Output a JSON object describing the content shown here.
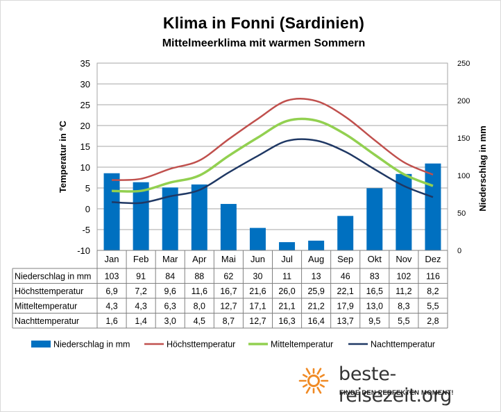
{
  "header": {
    "title": "Klima in Fonni (Sardinien)",
    "subtitle": "Mittelmeerklima mit warmen Sommern"
  },
  "branding": {
    "site": "beste-reisezeit.org",
    "tagline": "FINDE DEN PERFEKTEN MOMENT!",
    "logo_color": "#f08a24"
  },
  "chart_data": {
    "type": "bar",
    "categories": [
      "Jan",
      "Feb",
      "Mar",
      "Apr",
      "Mai",
      "Jun",
      "Jul",
      "Aug",
      "Sep",
      "Okt",
      "Nov",
      "Dez"
    ],
    "y_left": {
      "label": "Temperatur in °C",
      "range": [
        -10,
        35
      ],
      "ticks": [
        -10,
        -5,
        0,
        5,
        10,
        15,
        20,
        25,
        30,
        35
      ]
    },
    "y_right": {
      "label": "Niederschlag in mm",
      "range": [
        0,
        250
      ],
      "ticks": [
        0,
        50,
        100,
        150,
        200,
        250
      ]
    },
    "grid": "horizontal",
    "legend_position": "bottom",
    "series": [
      {
        "name": "Niederschlag in mm",
        "type": "bar",
        "axis": "right",
        "color": "#0070c0",
        "values": [
          103,
          91,
          84,
          88,
          62,
          30,
          11,
          13,
          46,
          83,
          102,
          116
        ],
        "labels": [
          "103",
          "91",
          "84",
          "88",
          "62",
          "30",
          "11",
          "13",
          "46",
          "83",
          "102",
          "116"
        ]
      },
      {
        "name": "Höchsttemperatur",
        "type": "line",
        "axis": "left",
        "color": "#c0504d",
        "values": [
          6.9,
          7.2,
          9.6,
          11.6,
          16.7,
          21.6,
          26.0,
          25.9,
          22.1,
          16.5,
          11.2,
          8.2
        ],
        "labels": [
          "6,9",
          "7,2",
          "9,6",
          "11,6",
          "16,7",
          "21,6",
          "26,0",
          "25,9",
          "22,1",
          "16,5",
          "11,2",
          "8,2"
        ]
      },
      {
        "name": "Mitteltemperatur",
        "type": "line",
        "axis": "left",
        "color": "#92d050",
        "values": [
          4.3,
          4.3,
          6.3,
          8.0,
          12.7,
          17.1,
          21.1,
          21.2,
          17.9,
          13.0,
          8.3,
          5.5
        ],
        "labels": [
          "4,3",
          "4,3",
          "6,3",
          "8,0",
          "12,7",
          "17,1",
          "21,1",
          "21,2",
          "17,9",
          "13,0",
          "8,3",
          "5,5"
        ]
      },
      {
        "name": "Nachttemperatur",
        "type": "line",
        "axis": "left",
        "color": "#1f3864",
        "values": [
          1.6,
          1.4,
          3.0,
          4.5,
          8.7,
          12.7,
          16.3,
          16.4,
          13.7,
          9.5,
          5.5,
          2.8
        ],
        "labels": [
          "1,6",
          "1,4",
          "3,0",
          "4,5",
          "8,7",
          "12,7",
          "16,3",
          "16,4",
          "13,7",
          "9,5",
          "5,5",
          "2,8"
        ]
      }
    ]
  }
}
